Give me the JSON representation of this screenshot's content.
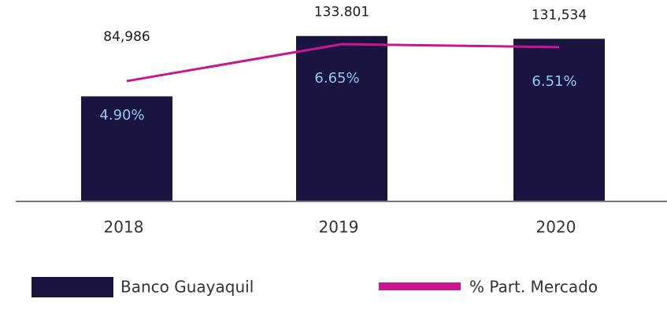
{
  "chart_data": {
    "type": "bar_line",
    "categories": [
      "2018",
      "2019",
      "2020"
    ],
    "series": [
      {
        "name": "Banco Guayaquil",
        "color": "#1a1440",
        "values": [
          84986,
          133801,
          131534
        ],
        "value_labels": [
          "84,986",
          "133.801",
          "131,534"
        ]
      },
      {
        "name": "% Part. Mercado",
        "color": "#c8178f",
        "axis": "y2",
        "values": [
          4.9,
          6.65,
          6.51
        ],
        "value_labels": [
          "4.90%",
          "6.65%",
          "6.51%"
        ]
      }
    ],
    "ylim": [
      0,
      140000
    ],
    "y2lim": [
      -0.8,
      7.4
    ]
  }
}
